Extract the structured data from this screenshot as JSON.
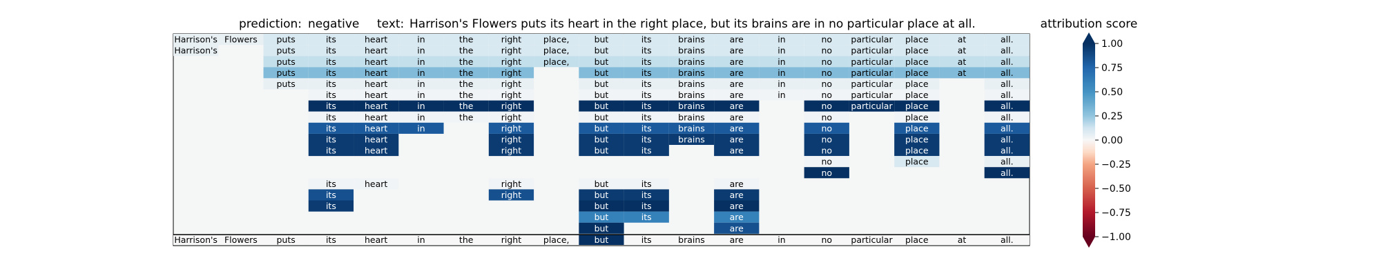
{
  "chart_data": {
    "type": "heatmap",
    "title": {
      "prediction_label": "prediction:",
      "prediction_value": "negative",
      "text_label": "text:",
      "text_value": "Harrison's Flowers puts its heart in the right place, but its brains are in no particular place at all."
    },
    "tokens": [
      "Harrison's",
      "Flowers",
      "puts",
      "its",
      "heart",
      "in",
      "the",
      "right",
      "place,",
      "but",
      "its",
      "brains",
      "are",
      "in",
      "no",
      "particular",
      "place",
      "at",
      "all."
    ],
    "rows": [
      [
        0.05,
        0.05,
        0.1,
        0.1,
        0.1,
        0.1,
        0.1,
        0.1,
        0.1,
        0.1,
        0.1,
        0.1,
        0.1,
        0.1,
        0.1,
        0.1,
        0.1,
        0.1,
        0.1
      ],
      [
        0.05,
        null,
        0.1,
        0.1,
        0.1,
        0.1,
        0.1,
        0.1,
        0.1,
        0.1,
        0.1,
        0.1,
        0.1,
        0.1,
        0.1,
        0.1,
        0.1,
        0.1,
        0.1
      ],
      [
        null,
        null,
        0.15,
        0.15,
        0.15,
        0.15,
        0.15,
        0.15,
        0.15,
        0.15,
        0.15,
        0.15,
        0.15,
        0.15,
        0.15,
        0.15,
        0.15,
        0.15,
        0.15
      ],
      [
        null,
        null,
        0.3,
        0.3,
        0.3,
        0.3,
        0.3,
        0.3,
        null,
        0.3,
        0.3,
        0.3,
        0.3,
        0.3,
        0.3,
        0.3,
        0.3,
        0.3,
        0.3
      ],
      [
        null,
        null,
        0.05,
        0.05,
        0.05,
        0.05,
        0.05,
        0.05,
        null,
        0.05,
        0.05,
        0.05,
        0.05,
        0.05,
        0.05,
        0.05,
        0.05,
        null,
        0.05
      ],
      [
        null,
        null,
        null,
        0.02,
        0.02,
        0.02,
        0.02,
        0.02,
        null,
        0.02,
        0.02,
        0.02,
        0.02,
        0.02,
        0.02,
        0.02,
        0.02,
        null,
        0.02
      ],
      [
        null,
        null,
        null,
        1.0,
        1.0,
        1.0,
        1.0,
        1.0,
        null,
        1.0,
        1.0,
        1.0,
        1.0,
        null,
        1.0,
        1.0,
        1.0,
        null,
        1.0
      ],
      [
        null,
        null,
        null,
        0.02,
        0.02,
        0.02,
        0.02,
        0.02,
        null,
        0.02,
        0.02,
        0.02,
        0.02,
        null,
        0.02,
        null,
        0.02,
        null,
        0.02
      ],
      [
        null,
        null,
        null,
        0.8,
        0.8,
        0.8,
        null,
        0.8,
        null,
        0.8,
        0.8,
        0.8,
        0.8,
        null,
        0.8,
        null,
        0.8,
        null,
        0.8
      ],
      [
        null,
        null,
        null,
        0.95,
        0.95,
        null,
        null,
        0.95,
        null,
        0.95,
        0.95,
        0.95,
        0.95,
        null,
        0.95,
        null,
        0.95,
        null,
        0.95
      ],
      [
        null,
        null,
        null,
        0.95,
        0.95,
        null,
        null,
        0.95,
        null,
        0.95,
        0.95,
        null,
        0.95,
        null,
        0.95,
        null,
        0.95,
        null,
        0.95
      ],
      [
        null,
        null,
        null,
        null,
        null,
        null,
        null,
        null,
        null,
        null,
        null,
        null,
        null,
        null,
        0.02,
        null,
        0.1,
        null,
        0.05
      ],
      [
        null,
        null,
        null,
        null,
        null,
        null,
        null,
        null,
        null,
        null,
        null,
        null,
        null,
        null,
        1.0,
        null,
        null,
        null,
        1.0
      ],
      [
        null,
        null,
        null,
        0.02,
        0.02,
        null,
        null,
        0.02,
        null,
        0.02,
        0.02,
        null,
        0.02,
        null,
        null,
        null,
        null,
        null,
        null
      ],
      [
        null,
        null,
        null,
        0.85,
        null,
        null,
        null,
        0.85,
        null,
        0.95,
        0.95,
        null,
        0.95,
        null,
        null,
        null,
        null,
        null,
        null
      ],
      [
        null,
        null,
        null,
        0.95,
        null,
        null,
        null,
        null,
        null,
        1.0,
        1.0,
        null,
        1.0,
        null,
        null,
        null,
        null,
        null,
        null
      ],
      [
        null,
        null,
        null,
        null,
        null,
        null,
        null,
        null,
        null,
        0.6,
        0.6,
        null,
        0.6,
        null,
        null,
        null,
        null,
        null,
        null
      ],
      [
        null,
        null,
        null,
        null,
        null,
        null,
        null,
        null,
        null,
        1.0,
        null,
        null,
        0.85,
        null,
        null,
        null,
        null,
        null,
        null
      ]
    ],
    "bottom_row": [
      0.0,
      0.0,
      0.0,
      0.0,
      0.0,
      0.0,
      0.0,
      0.0,
      0.0,
      1.0,
      0.0,
      0.0,
      0.0,
      0.0,
      0.0,
      0.0,
      0.0,
      0.0,
      0.0
    ],
    "colorbar": {
      "label": "attribution score",
      "range": [
        -1.0,
        1.0
      ],
      "ticks": [
        1.0,
        0.75,
        0.5,
        0.25,
        0.0,
        -0.25,
        -0.5,
        -0.75,
        -1.0
      ],
      "tick_labels": [
        "1.00",
        "0.75",
        "0.50",
        "0.25",
        "0.00",
        "−0.25",
        "−0.50",
        "−0.75",
        "−1.00"
      ],
      "colormap": "RdBu"
    },
    "colors": {
      "background": "#f5f6f6",
      "frame": "#000000"
    }
  }
}
